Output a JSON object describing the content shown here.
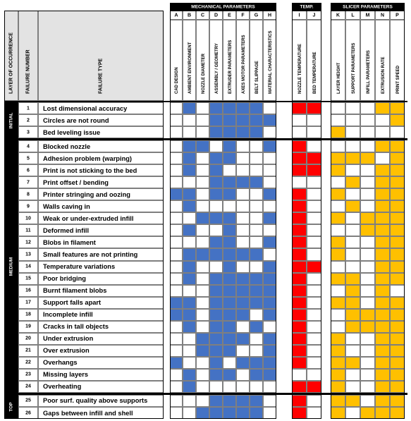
{
  "colors": {
    "mechanical": "#4472c4",
    "temperature": "#ff0000",
    "slicer": "#ffc000",
    "header_black": "#000000",
    "header_gray": "#e3e3e3",
    "grid_line": "#7f7f7f"
  },
  "header": {
    "layer_of_occurrence": "LAYER OF OCCURRENCE",
    "failure_number": "FAILURE NUMBER",
    "failure_type": "FAILURE TYPE"
  },
  "groups": [
    {
      "key": "mech",
      "label": "MECHANICAL PARAMETERS",
      "color_key": "mechanical",
      "columns": [
        {
          "letter": "A",
          "name": "CAD DESIGN"
        },
        {
          "letter": "B",
          "name": "AMBIENT ENVIRONMENT"
        },
        {
          "letter": "C",
          "name": "NOZZLE DIAMETER"
        },
        {
          "letter": "D",
          "name": "ASSEMBLY / GEOMETRY"
        },
        {
          "letter": "E",
          "name": "EXTRUDER PARAMETERS"
        },
        {
          "letter": "F",
          "name": "AXES MOTOR PARAMETERS"
        },
        {
          "letter": "G",
          "name": "BELT SLIPPAGE"
        },
        {
          "letter": "H",
          "name": "MATERIAL CHARACTERISTICS"
        }
      ]
    },
    {
      "key": "temp",
      "label": "TEMP.",
      "color_key": "temperature",
      "columns": [
        {
          "letter": "I",
          "name": "NOZZLE TEMPERATURE"
        },
        {
          "letter": "J",
          "name": "BED TEMPERATURE"
        }
      ]
    },
    {
      "key": "slicer",
      "label": "SLICER PARAMETERS",
      "color_key": "slicer",
      "columns": [
        {
          "letter": "K",
          "name": "LAYER HEIGHT"
        },
        {
          "letter": "L",
          "name": "SUPPORT PARAMETERS"
        },
        {
          "letter": "M",
          "name": "INFILL PARAMETERS"
        },
        {
          "letter": "N",
          "name": "EXTRUSION RATE"
        },
        {
          "letter": "P",
          "name": "PRINT SPEED"
        }
      ]
    }
  ],
  "layers": [
    {
      "label": "INITIAL",
      "rows": [
        {
          "number": "1",
          "type": "Lost dimensional accuracy",
          "mech": "01011110",
          "temp": "11",
          "slicer": "00011"
        },
        {
          "number": "2",
          "type": "Circles are not round",
          "mech": "00011111",
          "temp": "00",
          "slicer": "00001"
        },
        {
          "number": "3",
          "type": "Bed leveling issue",
          "mech": "00011110",
          "temp": "00",
          "slicer": "10000"
        }
      ]
    },
    {
      "label": "MEDIUM",
      "rows": [
        {
          "number": "4",
          "type": "Blocked nozzle",
          "mech": "01101001",
          "temp": "10",
          "slicer": "00011"
        },
        {
          "number": "5",
          "type": "Adhesion problem (warping)",
          "mech": "01011000",
          "temp": "11",
          "slicer": "11101"
        },
        {
          "number": "6",
          "type": "Print is not sticking to the bed",
          "mech": "01010000",
          "temp": "11",
          "slicer": "10011"
        },
        {
          "number": "7",
          "type": "Print offset / bending",
          "mech": "00011110",
          "temp": "00",
          "slicer": "01011"
        },
        {
          "number": "8",
          "type": "Printer stringing and oozing",
          "mech": "11011001",
          "temp": "10",
          "slicer": "10011"
        },
        {
          "number": "9",
          "type": "Walls caving in",
          "mech": "01000000",
          "temp": "10",
          "slicer": "01011"
        },
        {
          "number": "10",
          "type": "Weak or under-extruded infill",
          "mech": "00111001",
          "temp": "10",
          "slicer": "10111"
        },
        {
          "number": "11",
          "type": "Deformed infill",
          "mech": "01001000",
          "temp": "10",
          "slicer": "00111"
        },
        {
          "number": "12",
          "type": "Blobs in filament",
          "mech": "00011001",
          "temp": "10",
          "slicer": "10011"
        },
        {
          "number": "13",
          "type": "Small features are not printing",
          "mech": "01111110",
          "temp": "10",
          "slicer": "10011"
        },
        {
          "number": "14",
          "type": "Temperature variations",
          "mech": "01001001",
          "temp": "11",
          "slicer": "00011"
        },
        {
          "number": "15",
          "type": "Poor bridging",
          "mech": "01011111",
          "temp": "10",
          "slicer": "11011"
        },
        {
          "number": "16",
          "type": "Burnt filament blobs",
          "mech": "00011111",
          "temp": "10",
          "slicer": "01010"
        },
        {
          "number": "17",
          "type": "Support falls apart",
          "mech": "11011111",
          "temp": "10",
          "slicer": "11011"
        },
        {
          "number": "18",
          "type": "Incomplete infill",
          "mech": "11011101",
          "temp": "10",
          "slicer": "01111"
        },
        {
          "number": "19",
          "type": "Cracks in tall objects",
          "mech": "01011010",
          "temp": "10",
          "slicer": "01111"
        },
        {
          "number": "20",
          "type": "Under extrusion",
          "mech": "00111101",
          "temp": "10",
          "slicer": "10011"
        },
        {
          "number": "21",
          "type": "Over extrusion",
          "mech": "00111001",
          "temp": "10",
          "slicer": "10011"
        },
        {
          "number": "22",
          "type": "Overhangs",
          "mech": "10010111",
          "temp": "10",
          "slicer": "11011"
        },
        {
          "number": "23",
          "type": "Missing layers",
          "mech": "01011011",
          "temp": "00",
          "slicer": "10011"
        },
        {
          "number": "24",
          "type": "Overheating",
          "mech": "01000000",
          "temp": "11",
          "slicer": "10011"
        }
      ]
    },
    {
      "label": "TOP",
      "rows": [
        {
          "number": "25",
          "type": "Poor surf. quality above supports",
          "mech": "00011110",
          "temp": "10",
          "slicer": "11011"
        },
        {
          "number": "26",
          "type": "Gaps between infill and shell",
          "mech": "00111110",
          "temp": "10",
          "slicer": "10111"
        }
      ]
    }
  ]
}
